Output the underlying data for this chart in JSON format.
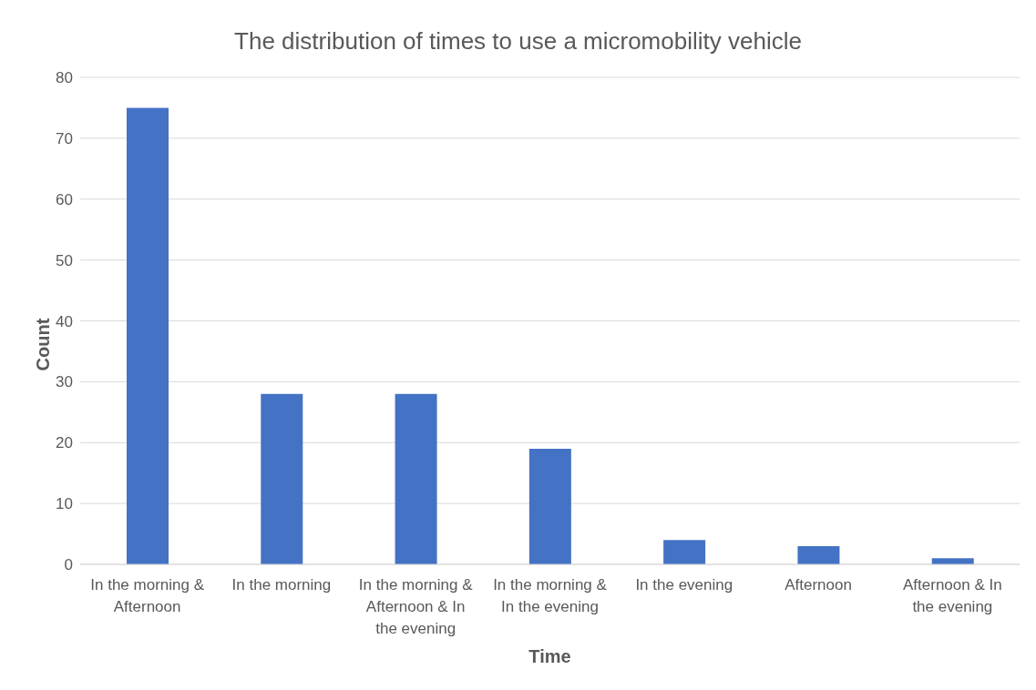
{
  "chart_data": {
    "type": "bar",
    "title": "The distribution of times to use a micromobility vehicle",
    "xlabel": "Time",
    "ylabel": "Count",
    "categories": [
      "In the morning & Afternoon",
      "In the morning",
      "In the morning & Afternoon & In the evening",
      "In the morning & In the evening",
      "In the evening",
      "Afternoon",
      "Afternoon & In the evening"
    ],
    "values": [
      75,
      28,
      28,
      19,
      4,
      3,
      1
    ],
    "color": "#4472c4",
    "ylim": [
      0,
      80
    ],
    "yticks": [
      0,
      10,
      20,
      30,
      40,
      50,
      60,
      70,
      80
    ],
    "grid": "y",
    "legend": false
  }
}
